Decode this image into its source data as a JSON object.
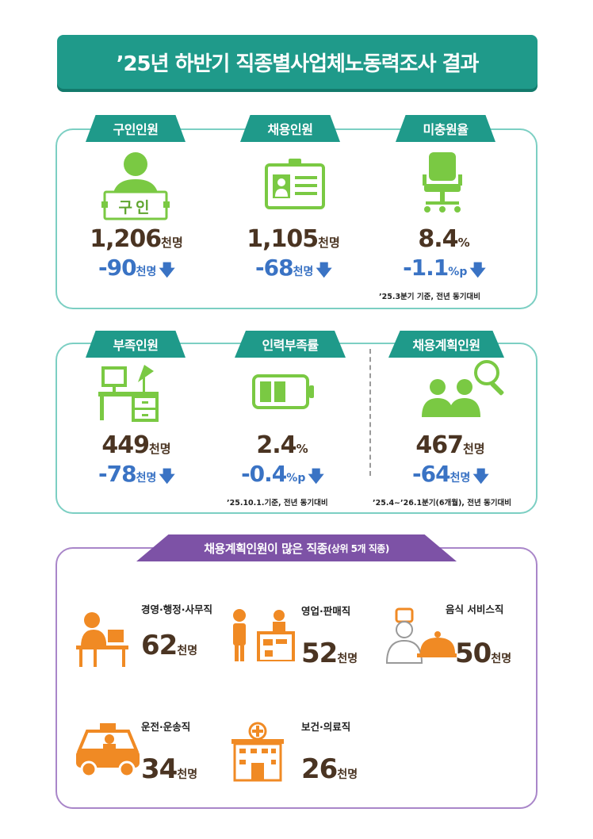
{
  "title": "’25년 하반기 직종별사업체노동력조사 결과",
  "section1": {
    "items": [
      {
        "label": "구인인원",
        "value": "1,206",
        "unit": "천명",
        "change": "-90",
        "change_unit": "천명",
        "badge": "구인",
        "icon": "person-sign-icon"
      },
      {
        "label": "채용인원",
        "value": "1,105",
        "unit": "천명",
        "change": "-68",
        "change_unit": "천명",
        "icon": "id-card-icon"
      },
      {
        "label": "미충원율",
        "value": "8.4",
        "unit": "%",
        "change": "-1.1",
        "change_unit": "%p",
        "icon": "office-chair-icon"
      }
    ],
    "note": "’25.3분기 기준, 전년 동기대비"
  },
  "section2": {
    "items": [
      {
        "label": "부족인원",
        "value": "449",
        "unit": "천명",
        "change": "-78",
        "change_unit": "천명",
        "icon": "empty-desk-icon"
      },
      {
        "label": "인력부족률",
        "value": "2.4",
        "unit": "%",
        "change": "-0.4",
        "change_unit": "%p",
        "icon": "battery-icon"
      },
      {
        "label": "채용계획인원",
        "value": "467",
        "unit": "천명",
        "change": "-64",
        "change_unit": "천명",
        "icon": "people-search-icon"
      }
    ],
    "note_left": "’25.10.1.기준, 전년 동기대비",
    "note_right": "’25.4~’26.1분기(6개월), 전년 동기대비"
  },
  "section3": {
    "title": "채용계획인원이 많은 직종",
    "subtitle": "(상위 5개 직종)",
    "jobs": [
      {
        "label": "경영·행정·사무직",
        "value": "62",
        "unit": "천명",
        "icon": "office-worker-icon"
      },
      {
        "label": "영업·판매직",
        "value": "52",
        "unit": "천명",
        "icon": "store-clerk-icon"
      },
      {
        "label": "음식 서비스직",
        "value": "50",
        "unit": "천명",
        "icon": "chef-icon"
      },
      {
        "label": "운전·운송직",
        "value": "34",
        "unit": "천명",
        "icon": "taxi-icon"
      },
      {
        "label": "보건·의료직",
        "value": "26",
        "unit": "천명",
        "icon": "hospital-icon"
      }
    ]
  },
  "colors": {
    "teal": "#1f9a8a",
    "purple": "#7d52a6",
    "green": "#7ac943",
    "orange": "#f08a24",
    "blue": "#3a73c4",
    "brown": "#4a3422"
  }
}
